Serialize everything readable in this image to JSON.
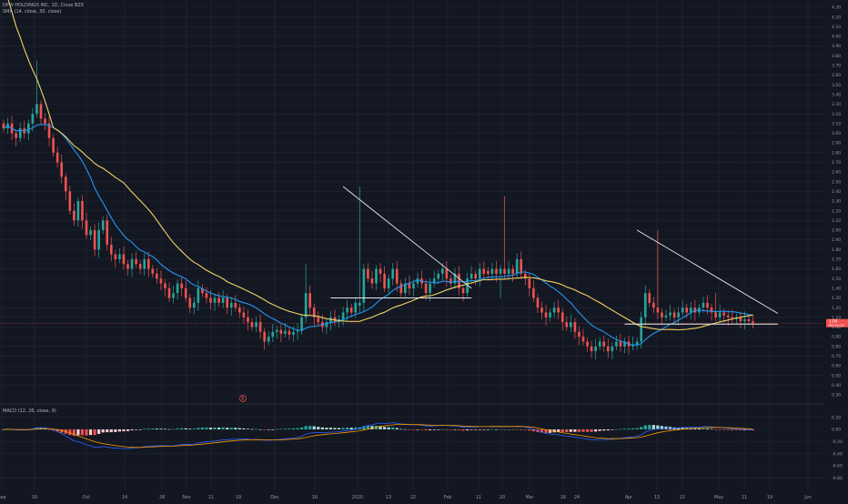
{
  "header": {
    "title": "DPW HOLDINGS INC, 1D, Close BZX",
    "indicator": "SMA (14, close, 30, close)"
  },
  "macd_label": "MACD (12, 26, close, 9)",
  "event_marker": "E",
  "colors": {
    "background": "#131722",
    "grid": "#232734",
    "up": "#26a69a",
    "down": "#ef5350",
    "sma14": "#2196f3",
    "sma30": "#f0d264",
    "trendline": "#e8e8e8",
    "last_price_bg": "#ef5350",
    "macd_line": "#2962ff",
    "signal_line": "#ff9800"
  },
  "chart_data": [
    {
      "type": "candlestick",
      "title": "DPW HOLDINGS INC, 1D, Close BZX",
      "x_tick_labels": [
        "Sep",
        "16",
        "Oct",
        "14",
        "28",
        "Nov",
        "11",
        "19",
        "Dec",
        "16",
        "2020",
        "13",
        "22",
        "Feb",
        "11",
        "20",
        "Mar",
        "16",
        "24",
        "Apr",
        "13",
        "21",
        "May",
        "11",
        "19",
        "Jun"
      ],
      "y_tick_labels": [
        "0.30",
        "0.40",
        "0.50",
        "0.60",
        "0.70",
        "0.80",
        "0.90",
        "1.00",
        "1.10",
        "1.20",
        "1.30",
        "1.40",
        "1.50",
        "1.60",
        "1.70",
        "1.80",
        "1.90",
        "2.00",
        "2.10",
        "2.20",
        "2.30",
        "2.40",
        "2.50",
        "2.60",
        "2.70",
        "2.80",
        "2.90",
        "3.00",
        "3.10",
        "3.20",
        "3.30",
        "3.40",
        "3.50",
        "3.60",
        "3.70",
        "3.80",
        "3.90",
        "4.00",
        "4.10",
        "4.20",
        "4.30"
      ],
      "ylim": [
        0.28,
        4.32
      ],
      "grid": true,
      "series": [
        {
          "name": "SMA (14, close)",
          "color": "#2196f3"
        },
        {
          "name": "SMA (30, close)",
          "color": "#f0d264"
        }
      ],
      "last_price_labels": [
        "1.04",
        "00:13:52"
      ],
      "price_line": 1.04,
      "closes": [
        3.05,
        3.1,
        3.0,
        2.95,
        3.05,
        3.0,
        3.1,
        3.2,
        3.3,
        3.15,
        3.1,
        2.95,
        2.8,
        2.7,
        2.55,
        2.4,
        2.2,
        2.1,
        2.3,
        2.1,
        1.95,
        2.0,
        1.8,
        2.0,
        2.1,
        1.85,
        1.75,
        1.7,
        1.75,
        1.65,
        1.6,
        1.7,
        1.65,
        1.6,
        1.7,
        1.6,
        1.55,
        1.5,
        1.45,
        1.4,
        1.3,
        1.35,
        1.45,
        1.4,
        1.3,
        1.2,
        1.25,
        1.4,
        1.35,
        1.3,
        1.25,
        1.3,
        1.25,
        1.3,
        1.2,
        1.25,
        1.2,
        1.15,
        1.1,
        1.05,
        1.0,
        1.05,
        0.95,
        0.85,
        0.9,
        0.95,
        0.97,
        0.93,
        0.96,
        0.92,
        0.95,
        0.96,
        1.1,
        1.35,
        1.2,
        1.1,
        1.05,
        1.0,
        1.05,
        1.1,
        1.05,
        1.08,
        1.15,
        1.2,
        1.15,
        1.25,
        1.25,
        1.6,
        1.5,
        1.45,
        1.6,
        1.55,
        1.4,
        1.5,
        1.6,
        1.45,
        1.35,
        1.45,
        1.4,
        1.45,
        1.5,
        1.45,
        1.35,
        1.45,
        1.5,
        1.55,
        1.6,
        1.5,
        1.45,
        1.55,
        1.4,
        1.35,
        1.5,
        1.55,
        1.5,
        1.6,
        1.55,
        1.55,
        1.6,
        1.55,
        1.6,
        1.55,
        1.6,
        1.55,
        1.7,
        1.55,
        1.5,
        1.4,
        1.3,
        1.2,
        1.15,
        1.1,
        1.15,
        1.2,
        1.15,
        1.05,
        1.0,
        1.05,
        0.95,
        0.9,
        0.85,
        0.8,
        0.75,
        0.8,
        0.85,
        0.8,
        0.75,
        0.8,
        0.85,
        0.8,
        0.85,
        0.8,
        0.82,
        0.85,
        1.1,
        1.35,
        1.25,
        1.2,
        1.15,
        1.1,
        1.12,
        1.15,
        1.1,
        1.15,
        1.2,
        1.15,
        1.2,
        1.15,
        1.2,
        1.25,
        1.2,
        1.15,
        1.1,
        1.15,
        1.12,
        1.1,
        1.08,
        1.1,
        1.06,
        1.08,
        1.06,
        1.04
      ],
      "patterns": [
        {
          "type": "descending_trendline",
          "from": [
            82,
            2.45
          ],
          "to": [
            113,
            1.4
          ]
        },
        {
          "type": "support_line",
          "from": [
            79,
            1.3
          ],
          "to": [
            113,
            1.3
          ]
        },
        {
          "type": "descending_trendline",
          "from": [
            153,
            2.0
          ],
          "to": [
            187,
            1.14
          ]
        },
        {
          "type": "support_line",
          "from": [
            150,
            1.03
          ],
          "to": [
            187,
            1.03
          ]
        }
      ]
    },
    {
      "type": "macd",
      "title": "MACD (12, 26, close, 9)",
      "y_tick_labels": [
        "0.20",
        "0.00",
        "-0.20",
        "-0.40",
        "-0.60",
        "-0.80"
      ],
      "ylim": [
        -0.9,
        0.3
      ]
    }
  ]
}
